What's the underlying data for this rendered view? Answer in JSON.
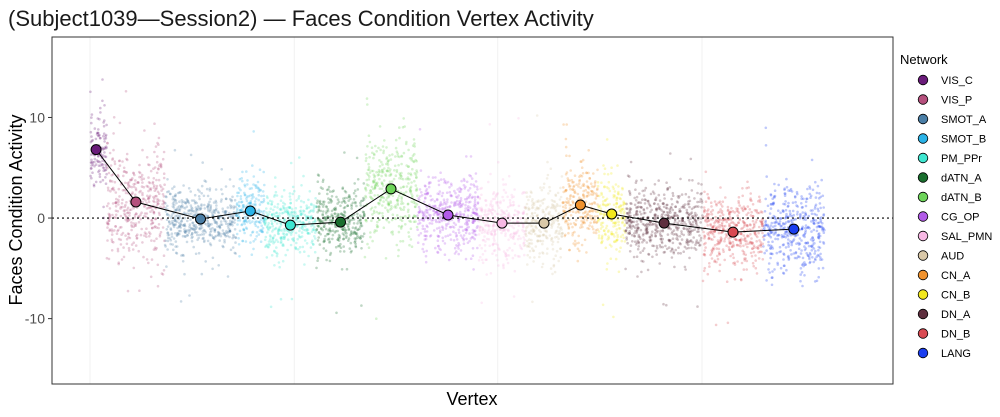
{
  "chart_data": {
    "type": "scatter",
    "title": "(Subject1039—Session2) — Faces Condition Vertex Activity",
    "xlabel": "Vertex",
    "ylabel": "Faces Condition Activity",
    "ylim": [
      -16.5,
      18
    ],
    "yticks": [
      {
        "value": -10,
        "label": "-10"
      },
      {
        "value": 0,
        "label": "0"
      },
      {
        "value": 10,
        "label": "10"
      }
    ],
    "reference_line": 0,
    "legend": {
      "title": "Network",
      "position": "right"
    },
    "series": [
      {
        "name": "VIS_C",
        "color": "#6a1b7a",
        "mean": 6.8,
        "x_range": [
          0.0,
          0.022
        ],
        "spread": 2.2
      },
      {
        "name": "VIS_P",
        "color": "#b5507d",
        "mean": 1.6,
        "x_range": [
          0.022,
          0.098
        ],
        "spread": 3.2
      },
      {
        "name": "SMOT_A",
        "color": "#4a7ea6",
        "mean": -0.1,
        "x_range": [
          0.098,
          0.191
        ],
        "spread": 1.9
      },
      {
        "name": "SMOT_B",
        "color": "#2ab3e8",
        "mean": 0.7,
        "x_range": [
          0.191,
          0.228
        ],
        "spread": 2.0
      },
      {
        "name": "PM_PPr",
        "color": "#3ee6d0",
        "mean": -0.7,
        "x_range": [
          0.228,
          0.296
        ],
        "spread": 1.8
      },
      {
        "name": "dATN_A",
        "color": "#1a6e2e",
        "mean": -0.4,
        "x_range": [
          0.296,
          0.359
        ],
        "spread": 2.0
      },
      {
        "name": "dATN_B",
        "color": "#6ed45a",
        "mean": 2.9,
        "x_range": [
          0.359,
          0.428
        ],
        "spread": 2.8
      },
      {
        "name": "CG_OP",
        "color": "#b25be8",
        "mean": 0.3,
        "x_range": [
          0.428,
          0.508
        ],
        "spread": 2.2
      },
      {
        "name": "SAL_PMN",
        "color": "#f7b8e4",
        "mean": -0.5,
        "x_range": [
          0.508,
          0.569
        ],
        "spread": 2.3
      },
      {
        "name": "AUD",
        "color": "#d9c8a8",
        "mean": -0.5,
        "x_range": [
          0.569,
          0.618
        ],
        "spread": 2.0
      },
      {
        "name": "CN_A",
        "color": "#f0922e",
        "mean": 1.3,
        "x_range": [
          0.618,
          0.664
        ],
        "spread": 2.4
      },
      {
        "name": "CN_B",
        "color": "#f2e81e",
        "mean": 0.4,
        "x_range": [
          0.664,
          0.7
        ],
        "spread": 2.2
      },
      {
        "name": "DN_A",
        "color": "#5e2e3e",
        "mean": -0.5,
        "x_range": [
          0.7,
          0.801
        ],
        "spread": 2.0
      },
      {
        "name": "DN_B",
        "color": "#d94a52",
        "mean": -1.4,
        "x_range": [
          0.801,
          0.88
        ],
        "spread": 2.0
      },
      {
        "name": "LANG",
        "color": "#1a3ef0",
        "mean": -1.1,
        "x_range": [
          0.88,
          0.96
        ],
        "spread": 2.6
      }
    ]
  }
}
